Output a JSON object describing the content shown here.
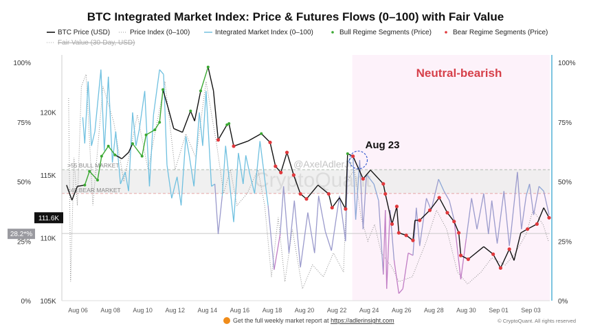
{
  "chart_data": {
    "type": "line",
    "title": "BTC Integrated Market Index: Price & Futures Flows (0–100) with Fair Value",
    "legend": {
      "placement": "top",
      "items": [
        {
          "label": "BTC Price (USD)",
          "style": "solid",
          "color": "#111111"
        },
        {
          "label": "Price Index (0–100)",
          "style": "dotted",
          "color": "#999999"
        },
        {
          "label": "Integrated Market Index (0–100)",
          "style": "solid",
          "color": "#7cc4e0"
        },
        {
          "label": "Bull Regime Segments (Price)",
          "style": "dot",
          "color": "#3aa832"
        },
        {
          "label": "Bear Regime Segments (Price)",
          "style": "dot",
          "color": "#e0383c"
        },
        {
          "label": "Fair Value (30-Day, USD)",
          "style": "dotted",
          "color": "#aaaaaa",
          "hidden": true
        }
      ]
    },
    "x_ticks": [
      "Aug 06",
      "Aug 08",
      "Aug 10",
      "Aug 12",
      "Aug 14",
      "Aug 16",
      "Aug 18",
      "Aug 20",
      "Aug 22",
      "Aug 24",
      "Aug 26",
      "Aug 28",
      "Aug 30",
      "Sep 01",
      "Sep 03"
    ],
    "x_tick_dates": [
      "08-06 00:00",
      "08-08 00:00",
      "08-10 00:00",
      "08-12 00:00",
      "08-14 00:00",
      "08-16 00:00",
      "08-18 00:00",
      "08-20 00:00",
      "08-22 00:00",
      "08-24 00:00",
      "08-26 00:00",
      "08-28 00:00",
      "08-30 00:00",
      "09-01 00:00",
      "09-03 00:00"
    ],
    "xlim": [
      "08-05 00:00",
      "09-04 04:00"
    ],
    "y_price": {
      "ticks": [
        "105K",
        "110K",
        "115K",
        "120K"
      ],
      "tick_values": [
        105,
        110,
        115,
        120
      ],
      "ylim_k": [
        105,
        124.2
      ],
      "unit": "USD (K)"
    },
    "y_index_left": {
      "ticks": [
        "0%",
        "25%",
        "50%",
        "75%",
        "100%"
      ],
      "tick_values": [
        0,
        25,
        50,
        75,
        100
      ],
      "ylim": [
        0,
        100
      ]
    },
    "y_index_right": {
      "ticks": [
        "0%",
        "25%",
        "50%",
        "75%",
        "100%"
      ],
      "tick_values": [
        0,
        25,
        50,
        75,
        100
      ]
    },
    "grid": false,
    "bands": [
      {
        "label": ">55 BULL MARKET",
        "value": 55,
        "color": "#9aa89a"
      },
      {
        "label": "<45 BEAR MARKET",
        "value": 45,
        "color": "#e08a8a"
      }
    ],
    "neutral_band": [
      45,
      55
    ],
    "region": {
      "label": "Neutral-bearish",
      "start": "08-22 23:00",
      "color": "#d6404a"
    },
    "annotation": {
      "label": "Aug 23",
      "date": "08-23 08:00",
      "price_k": 116.2
    },
    "current_price_label": "111.6K",
    "current_index_label": "28.2*%",
    "current_index_value": 28.2,
    "price_series": [
      [
        "08-05 07:00",
        114.2,
        "none"
      ],
      [
        "08-05 15:00",
        113.0,
        "none"
      ],
      [
        "08-05 23:00",
        114.1,
        "none"
      ],
      [
        "08-06 10:00",
        114.2,
        "bull"
      ],
      [
        "08-06 17:00",
        115.3,
        "bull"
      ],
      [
        "08-07 05:00",
        114.6,
        "bull"
      ],
      [
        "08-07 11:00",
        116.5,
        "bull"
      ],
      [
        "08-07 21:00",
        117.3,
        "bull"
      ],
      [
        "08-08 07:00",
        116.6,
        "bull"
      ],
      [
        "08-08 17:00",
        116.3,
        "none"
      ],
      [
        "08-09 03:00",
        116.8,
        "none"
      ],
      [
        "08-09 09:00",
        117.5,
        "bull"
      ],
      [
        "08-09 23:00",
        116.5,
        "bull"
      ],
      [
        "08-10 05:00",
        118.2,
        "bull"
      ],
      [
        "08-10 18:00",
        118.6,
        "bull"
      ],
      [
        "08-11 01:00",
        119.2,
        "bull"
      ],
      [
        "08-11 06:00",
        121.8,
        "bull"
      ],
      [
        "08-11 14:00",
        120.3,
        "none"
      ],
      [
        "08-11 22:00",
        118.7,
        "none"
      ],
      [
        "08-12 11:00",
        118.4,
        "none"
      ],
      [
        "08-12 23:00",
        120.1,
        "bull"
      ],
      [
        "08-13 05:00",
        119.3,
        "none"
      ],
      [
        "08-13 14:00",
        121.7,
        "bull"
      ],
      [
        "08-14 01:00",
        123.6,
        "bull"
      ],
      [
        "08-14 09:00",
        121.7,
        "none"
      ],
      [
        "08-14 16:00",
        117.8,
        "bear"
      ],
      [
        "08-15 05:00",
        119.0,
        "bull"
      ],
      [
        "08-15 08:00",
        119.1,
        "bull"
      ],
      [
        "08-15 15:00",
        117.3,
        "bear"
      ],
      [
        "08-16 12:00",
        117.7,
        "none"
      ],
      [
        "08-17 08:00",
        118.3,
        "bull"
      ],
      [
        "08-17 21:00",
        117.6,
        "bear"
      ],
      [
        "08-18 05:00",
        115.7,
        "bear"
      ],
      [
        "08-18 13:00",
        115.2,
        "bear"
      ],
      [
        "08-18 22:00",
        116.8,
        "bear"
      ],
      [
        "08-19 08:00",
        115.0,
        "bear"
      ],
      [
        "08-19 18:00",
        113.5,
        "bear"
      ],
      [
        "08-20 03:00",
        113.1,
        "bear"
      ],
      [
        "08-20 20:00",
        114.2,
        "none"
      ],
      [
        "08-21 12:00",
        113.5,
        "bear"
      ],
      [
        "08-21 17:00",
        112.4,
        "bear"
      ],
      [
        "08-22 04:00",
        113.2,
        "none"
      ],
      [
        "08-22 13:00",
        112.3,
        "bear"
      ],
      [
        "08-22 16:00",
        116.7,
        "bull"
      ],
      [
        "08-23 00:00",
        116.5,
        "bear"
      ],
      [
        "08-23 15:00",
        114.7,
        "bear"
      ],
      [
        "08-24 02:00",
        115.4,
        "none"
      ],
      [
        "08-24 21:00",
        114.3,
        "bear"
      ],
      [
        "08-25 00:00",
        113.5,
        "bear"
      ],
      [
        "08-25 10:00",
        111.1,
        "bear"
      ],
      [
        "08-25 17:00",
        112.5,
        "bear"
      ],
      [
        "08-25 20:00",
        110.4,
        "bear"
      ],
      [
        "08-26 07:00",
        110.2,
        "bear"
      ],
      [
        "08-26 17:00",
        109.8,
        "bear"
      ],
      [
        "08-26 20:00",
        111.4,
        "none"
      ],
      [
        "08-27 03:00",
        111.4,
        "bear"
      ],
      [
        "08-27 18:00",
        112.2,
        "bear"
      ],
      [
        "08-28 08:00",
        113.2,
        "bear"
      ],
      [
        "08-28 20:00",
        112.0,
        "bear"
      ],
      [
        "08-29 06:00",
        111.3,
        "bear"
      ],
      [
        "08-29 13:00",
        110.4,
        "bear"
      ],
      [
        "08-29 16:00",
        108.6,
        "bear"
      ],
      [
        "08-30 03:00",
        108.3,
        "bear"
      ],
      [
        "08-31 02:00",
        109.3,
        "none"
      ],
      [
        "08-31 16:00",
        108.7,
        "bear"
      ],
      [
        "09-01 03:00",
        107.6,
        "bear"
      ],
      [
        "09-01 16:00",
        109.1,
        "bear"
      ],
      [
        "09-01 23:00",
        108.2,
        "none"
      ],
      [
        "09-02 09:00",
        110.4,
        "none"
      ],
      [
        "09-02 19:00",
        110.7,
        "bear"
      ],
      [
        "09-03 09:00",
        111.1,
        "bear"
      ],
      [
        "09-03 19:00",
        112.4,
        "none"
      ],
      [
        "09-04 03:00",
        111.6,
        "bear"
      ]
    ],
    "integrated_index_series": [
      [
        "08-06 07:00",
        77
      ],
      [
        "08-06 10:00",
        66
      ],
      [
        "08-06 15:00",
        92
      ],
      [
        "08-06 20:00",
        65
      ],
      [
        "08-07 01:00",
        71
      ],
      [
        "08-07 10:00",
        97
      ],
      [
        "08-07 15:00",
        63
      ],
      [
        "08-07 21:00",
        94
      ],
      [
        "08-08 03:00",
        58
      ],
      [
        "08-08 08:00",
        71
      ],
      [
        "08-08 15:00",
        49
      ],
      [
        "08-08 22:00",
        54
      ],
      [
        "08-09 03:00",
        46
      ],
      [
        "08-09 09:00",
        79
      ],
      [
        "08-09 14:00",
        65
      ],
      [
        "08-09 19:00",
        72
      ],
      [
        "08-10 03:00",
        88
      ],
      [
        "08-10 10:00",
        48
      ],
      [
        "08-10 16:00",
        78
      ],
      [
        "08-11 01:00",
        97
      ],
      [
        "08-11 07:00",
        95
      ],
      [
        "08-11 12:00",
        57
      ],
      [
        "08-11 19:00",
        43
      ],
      [
        "08-12 03:00",
        52
      ],
      [
        "08-12 09:00",
        40
      ],
      [
        "08-12 16:00",
        69
      ],
      [
        "08-12 21:00",
        61
      ],
      [
        "08-13 04:00",
        48
      ],
      [
        "08-13 12:00",
        79
      ],
      [
        "08-13 17:00",
        65
      ],
      [
        "08-13 22:00",
        88
      ],
      [
        "08-14 06:00",
        48
      ],
      [
        "08-14 11:00",
        49
      ],
      [
        "08-14 16:00",
        28
      ],
      [
        "08-14 22:00",
        44
      ],
      [
        "08-15 03:00",
        65
      ],
      [
        "08-15 15:00",
        33
      ],
      [
        "08-15 22:00",
        62
      ],
      [
        "08-16 05:00",
        49
      ],
      [
        "08-16 09:00",
        61
      ],
      [
        "08-16 15:00",
        53
      ],
      [
        "08-16 22:00",
        45
      ],
      [
        "08-17 06:00",
        67
      ],
      [
        "08-17 18:00",
        40
      ],
      [
        "08-18 03:00",
        13
      ],
      [
        "08-18 12:00",
        28
      ],
      [
        "08-18 17:00",
        48
      ],
      [
        "08-19 01:00",
        20
      ],
      [
        "08-19 09:00",
        42
      ],
      [
        "08-19 18:00",
        14
      ],
      [
        "08-20 05:00",
        37
      ],
      [
        "08-20 15:00",
        20
      ],
      [
        "08-20 21:00",
        44
      ],
      [
        "08-21 07:00",
        29
      ],
      [
        "08-21 16:00",
        21
      ],
      [
        "08-22 04:00",
        44
      ],
      [
        "08-22 13:00",
        25
      ],
      [
        "08-22 16:00",
        58
      ],
      [
        "08-23 00:00",
        61
      ],
      [
        "08-23 04:00",
        34
      ],
      [
        "08-23 10:00",
        59
      ],
      [
        "08-23 15:00",
        30
      ],
      [
        "08-23 20:00",
        53
      ],
      [
        "08-24 07:00",
        49
      ],
      [
        "08-24 14:00",
        42
      ],
      [
        "08-24 21:00",
        11
      ],
      [
        "08-25 00:00",
        38
      ],
      [
        "08-25 02:00",
        5
      ],
      [
        "08-25 07:00",
        38
      ],
      [
        "08-25 13:00",
        17
      ],
      [
        "08-25 20:00",
        3
      ],
      [
        "08-26 02:00",
        5
      ],
      [
        "08-26 10:00",
        20
      ],
      [
        "08-26 17:00",
        19
      ],
      [
        "08-26 22:00",
        39
      ],
      [
        "08-27 03:00",
        23
      ],
      [
        "08-27 13:00",
        43
      ],
      [
        "08-27 20:00",
        38
      ],
      [
        "08-28 07:00",
        51
      ],
      [
        "08-28 15:00",
        46
      ],
      [
        "08-28 23:00",
        42
      ],
      [
        "08-29 06:00",
        34
      ],
      [
        "08-29 16:00",
        9
      ],
      [
        "08-30 00:00",
        26
      ],
      [
        "08-30 08:00",
        43
      ],
      [
        "08-30 16:00",
        30
      ],
      [
        "08-31 02:00",
        45
      ],
      [
        "08-31 09:00",
        28
      ],
      [
        "08-31 14:00",
        42
      ],
      [
        "08-31 22:00",
        24
      ],
      [
        "09-01 08:00",
        46
      ],
      [
        "09-01 16:00",
        23
      ],
      [
        "09-01 19:00",
        30
      ],
      [
        "09-02 04:00",
        54
      ],
      [
        "09-02 10:00",
        30
      ],
      [
        "09-02 17:00",
        44
      ],
      [
        "09-02 22:00",
        49
      ],
      [
        "09-03 04:00",
        36
      ],
      [
        "09-03 12:00",
        48
      ],
      [
        "09-03 19:00",
        46
      ],
      [
        "09-04 03:00",
        36
      ]
    ],
    "price_index_series": [
      [
        "08-05 10:00",
        85
      ],
      [
        "08-05 13:00",
        8
      ],
      [
        "08-05 18:00",
        60
      ],
      [
        "08-05 23:00",
        40
      ],
      [
        "08-06 05:00",
        90
      ],
      [
        "08-06 12:00",
        95
      ],
      [
        "08-06 22:00",
        40
      ],
      [
        "08-07 13:00",
        90
      ],
      [
        "08-08 05:00",
        75
      ],
      [
        "08-08 20:00",
        50
      ],
      [
        "08-09 16:00",
        78
      ],
      [
        "08-10 08:00",
        55
      ],
      [
        "08-10 18:00",
        70
      ],
      [
        "08-11 09:00",
        92
      ],
      [
        "08-12 00:00",
        55
      ],
      [
        "08-12 16:00",
        70
      ],
      [
        "08-13 07:00",
        60
      ],
      [
        "08-13 22:00",
        92
      ],
      [
        "08-14 14:00",
        65
      ],
      [
        "08-15 00:00",
        45
      ],
      [
        "08-15 10:00",
        55
      ],
      [
        "08-15 20:00",
        40
      ],
      [
        "08-16 11:00",
        45
      ],
      [
        "08-17 03:00",
        55
      ],
      [
        "08-17 13:00",
        40
      ],
      [
        "08-17 23:00",
        10
      ],
      [
        "08-18 09:00",
        35
      ],
      [
        "08-18 19:00",
        8
      ],
      [
        "08-19 06:00",
        30
      ],
      [
        "08-19 21:00",
        5
      ],
      [
        "08-20 12:00",
        15
      ],
      [
        "08-21 04:00",
        10
      ],
      [
        "08-21 19:00",
        20
      ],
      [
        "08-22 10:00",
        12
      ],
      [
        "08-22 15:00",
        50
      ],
      [
        "08-23 02:00",
        55
      ],
      [
        "08-23 12:00",
        35
      ],
      [
        "08-23 22:00",
        25
      ],
      [
        "08-24 08:00",
        32
      ],
      [
        "08-24 18:00",
        20
      ],
      [
        "08-25 10:00",
        14
      ],
      [
        "08-25 20:00",
        8
      ],
      [
        "08-26 16:00",
        10
      ],
      [
        "08-27 13:00",
        25
      ],
      [
        "08-28 04:00",
        38
      ],
      [
        "08-28 19:00",
        30
      ],
      [
        "08-29 11:00",
        12
      ],
      [
        "08-30 02:00",
        7
      ],
      [
        "08-30 22:00",
        12
      ],
      [
        "08-31 14:00",
        18
      ],
      [
        "09-01 10:00",
        15
      ],
      [
        "09-02 01:00",
        20
      ],
      [
        "09-02 17:00",
        28
      ],
      [
        "09-03 03:00",
        38
      ],
      [
        "09-03 18:00",
        32
      ],
      [
        "09-04 02:00",
        25
      ]
    ]
  },
  "watermark": {
    "handle": "@AxelAdlerJr",
    "brand": "CryptoQuant"
  },
  "footer": {
    "text": "Get the full weekly market report at ",
    "link": "https://adlerinsight.com",
    "copyright": "© CryptoQuant. All rights reserved"
  }
}
